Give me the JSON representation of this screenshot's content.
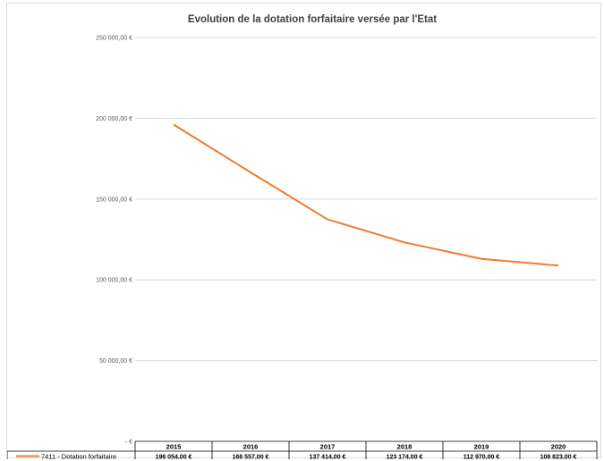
{
  "chart_data": {
    "type": "line",
    "title": "Evolution de la dotation forfaitaire versée par l'Etat",
    "categories": [
      "2015",
      "2016",
      "2017",
      "2018",
      "2019",
      "2020"
    ],
    "y_tick_labels": [
      "250 000,00 €",
      "200 000,00 €",
      "150 000,00 €",
      "100 000,00 €",
      "50 000,00 €",
      "- €"
    ],
    "ylim": [
      0,
      250000
    ],
    "grid": true,
    "series": [
      {
        "name": "7411 - Dotation forfaitaire",
        "values": [
          196054,
          166557,
          137414,
          123174,
          112970,
          108823
        ],
        "value_labels": [
          "196 054,00 €",
          "166 557,00 €",
          "137 414,00 €",
          "123 174,00 €",
          "112 970,00 €",
          "108 823,00 €"
        ],
        "color": "#ed7d31"
      }
    ],
    "legend": "data-table-bottom"
  }
}
